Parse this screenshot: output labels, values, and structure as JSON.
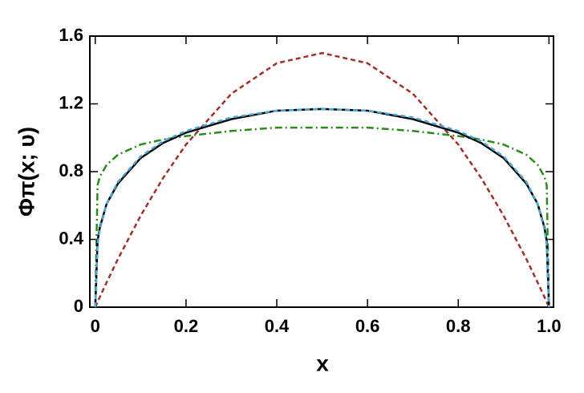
{
  "chart_data": {
    "type": "line",
    "xlabel": "x",
    "ylabel": "Φπ(x; υ)",
    "x": [
      0,
      0.005,
      0.01,
      0.025,
      0.05,
      0.1,
      0.15,
      0.2,
      0.3,
      0.4,
      0.5,
      0.6,
      0.7,
      0.8,
      0.85,
      0.9,
      0.95,
      0.975,
      0.99,
      0.995,
      1
    ],
    "series": [
      {
        "color": "#a0302a",
        "dash": "dashed",
        "values": [
          0,
          0.03,
          0.06,
          0.146,
          0.285,
          0.54,
          0.765,
          0.96,
          1.26,
          1.44,
          1.5,
          1.44,
          1.26,
          0.96,
          0.765,
          0.54,
          0.285,
          0.146,
          0.06,
          0.03,
          0
        ]
      },
      {
        "color": "#2a8a1a",
        "dash": "dashdot",
        "values": [
          0,
          0.72,
          0.77,
          0.84,
          0.9,
          0.96,
          0.99,
          1.01,
          1.04,
          1.06,
          1.06,
          1.06,
          1.04,
          1.01,
          0.99,
          0.96,
          0.9,
          0.84,
          0.77,
          0.72,
          0
        ]
      },
      {
        "color": "#000000",
        "dash": "solid",
        "values": [
          0,
          0.39,
          0.47,
          0.61,
          0.73,
          0.88,
          0.97,
          1.03,
          1.11,
          1.16,
          1.17,
          1.16,
          1.11,
          1.03,
          0.97,
          0.88,
          0.73,
          0.61,
          0.47,
          0.39,
          0
        ]
      },
      {
        "color": "#4aa8d8",
        "dash": "dashed",
        "values": [
          0,
          0.37,
          0.46,
          0.61,
          0.74,
          0.89,
          0.98,
          1.04,
          1.12,
          1.16,
          1.17,
          1.16,
          1.12,
          1.04,
          0.98,
          0.89,
          0.74,
          0.61,
          0.46,
          0.37,
          0
        ]
      }
    ],
    "xlim": [
      -0.012,
      1.01
    ],
    "ylim": [
      0,
      1.6
    ],
    "xticks": [
      0,
      0.2,
      0.4,
      0.6,
      0.8,
      {
        "value": 1,
        "label": "1.0"
      }
    ],
    "yticks": [
      0,
      0.4,
      0.8,
      1.2,
      1.6
    ]
  }
}
